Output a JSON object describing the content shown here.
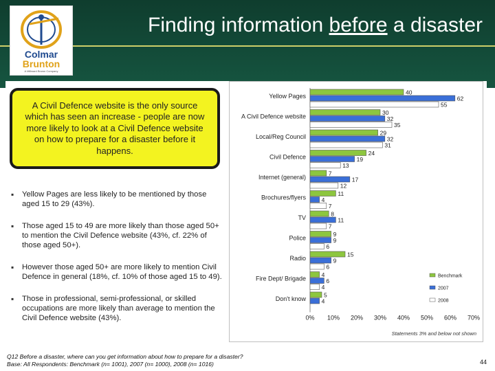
{
  "header": {
    "title_pre": "Finding information ",
    "title_emph": "before",
    "title_post": " a disaster",
    "logo_line1": "Colmar",
    "logo_line2": "Brunton",
    "logo_tagline": "A Millward Brown Company"
  },
  "callout_text": "A Civil Defence website is the only source which has seen an increase - people are now more likely to look at a Civil Defence website on how to prepare for a disaster before it happens.",
  "bullets": [
    "Yellow Pages are less likely to be mentioned by those aged 15 to 29 (43%).",
    "Those aged 15 to 49 are more likely than those aged 50+ to mention the Civil Defence website (43%, cf. 22% of those aged 50+).",
    "However those aged 50+ are more likely to mention Civil Defence in general (18%, cf. 10% of those aged 15 to 49).",
    "Those in professional, semi-professional, or skilled occupations are more likely than average to mention the Civil Defence website (43%)."
  ],
  "footnote_line1": "Q12 Before a disaster, where can you get information about how to prepare for a disaster?",
  "footnote_line2": "Base: All Respondents: Benchmark (n= 1001), 2007 (n= 1000), 2008 (n= 1016)",
  "page_number": "44",
  "colors": {
    "header_bg": "#0f3d2e",
    "benchmark": "#8dc63f",
    "y2007": "#3a6fd8",
    "y2008": "#ffffff",
    "callout_bg": "#f3f320"
  },
  "chart_data": {
    "type": "bar",
    "orientation": "horizontal",
    "categories": [
      "Yellow Pages",
      "A Civil Defence website",
      "Local/Reg Council",
      "Civil Defence",
      "Internet (general)",
      "Brochures/flyers",
      "TV",
      "Police",
      "Radio",
      "Fire Dept/ Brigade",
      "Don't know"
    ],
    "series": [
      {
        "name": "Benchmark",
        "values": [
          40,
          30,
          29,
          24,
          7,
          11,
          8,
          9,
          15,
          4,
          5
        ]
      },
      {
        "name": "2007",
        "values": [
          62,
          32,
          32,
          19,
          17,
          4,
          11,
          9,
          9,
          6,
          4
        ]
      },
      {
        "name": "2008",
        "values": [
          55,
          35,
          31,
          13,
          12,
          7,
          7,
          6,
          6,
          4,
          null
        ]
      }
    ],
    "x_ticks": [
      "0%",
      "10%",
      "20%",
      "30%",
      "40%",
      "50%",
      "60%",
      "70%"
    ],
    "xlim": [
      0,
      70
    ],
    "legend_position": "right",
    "note": "Statements 3% and below not shown"
  }
}
